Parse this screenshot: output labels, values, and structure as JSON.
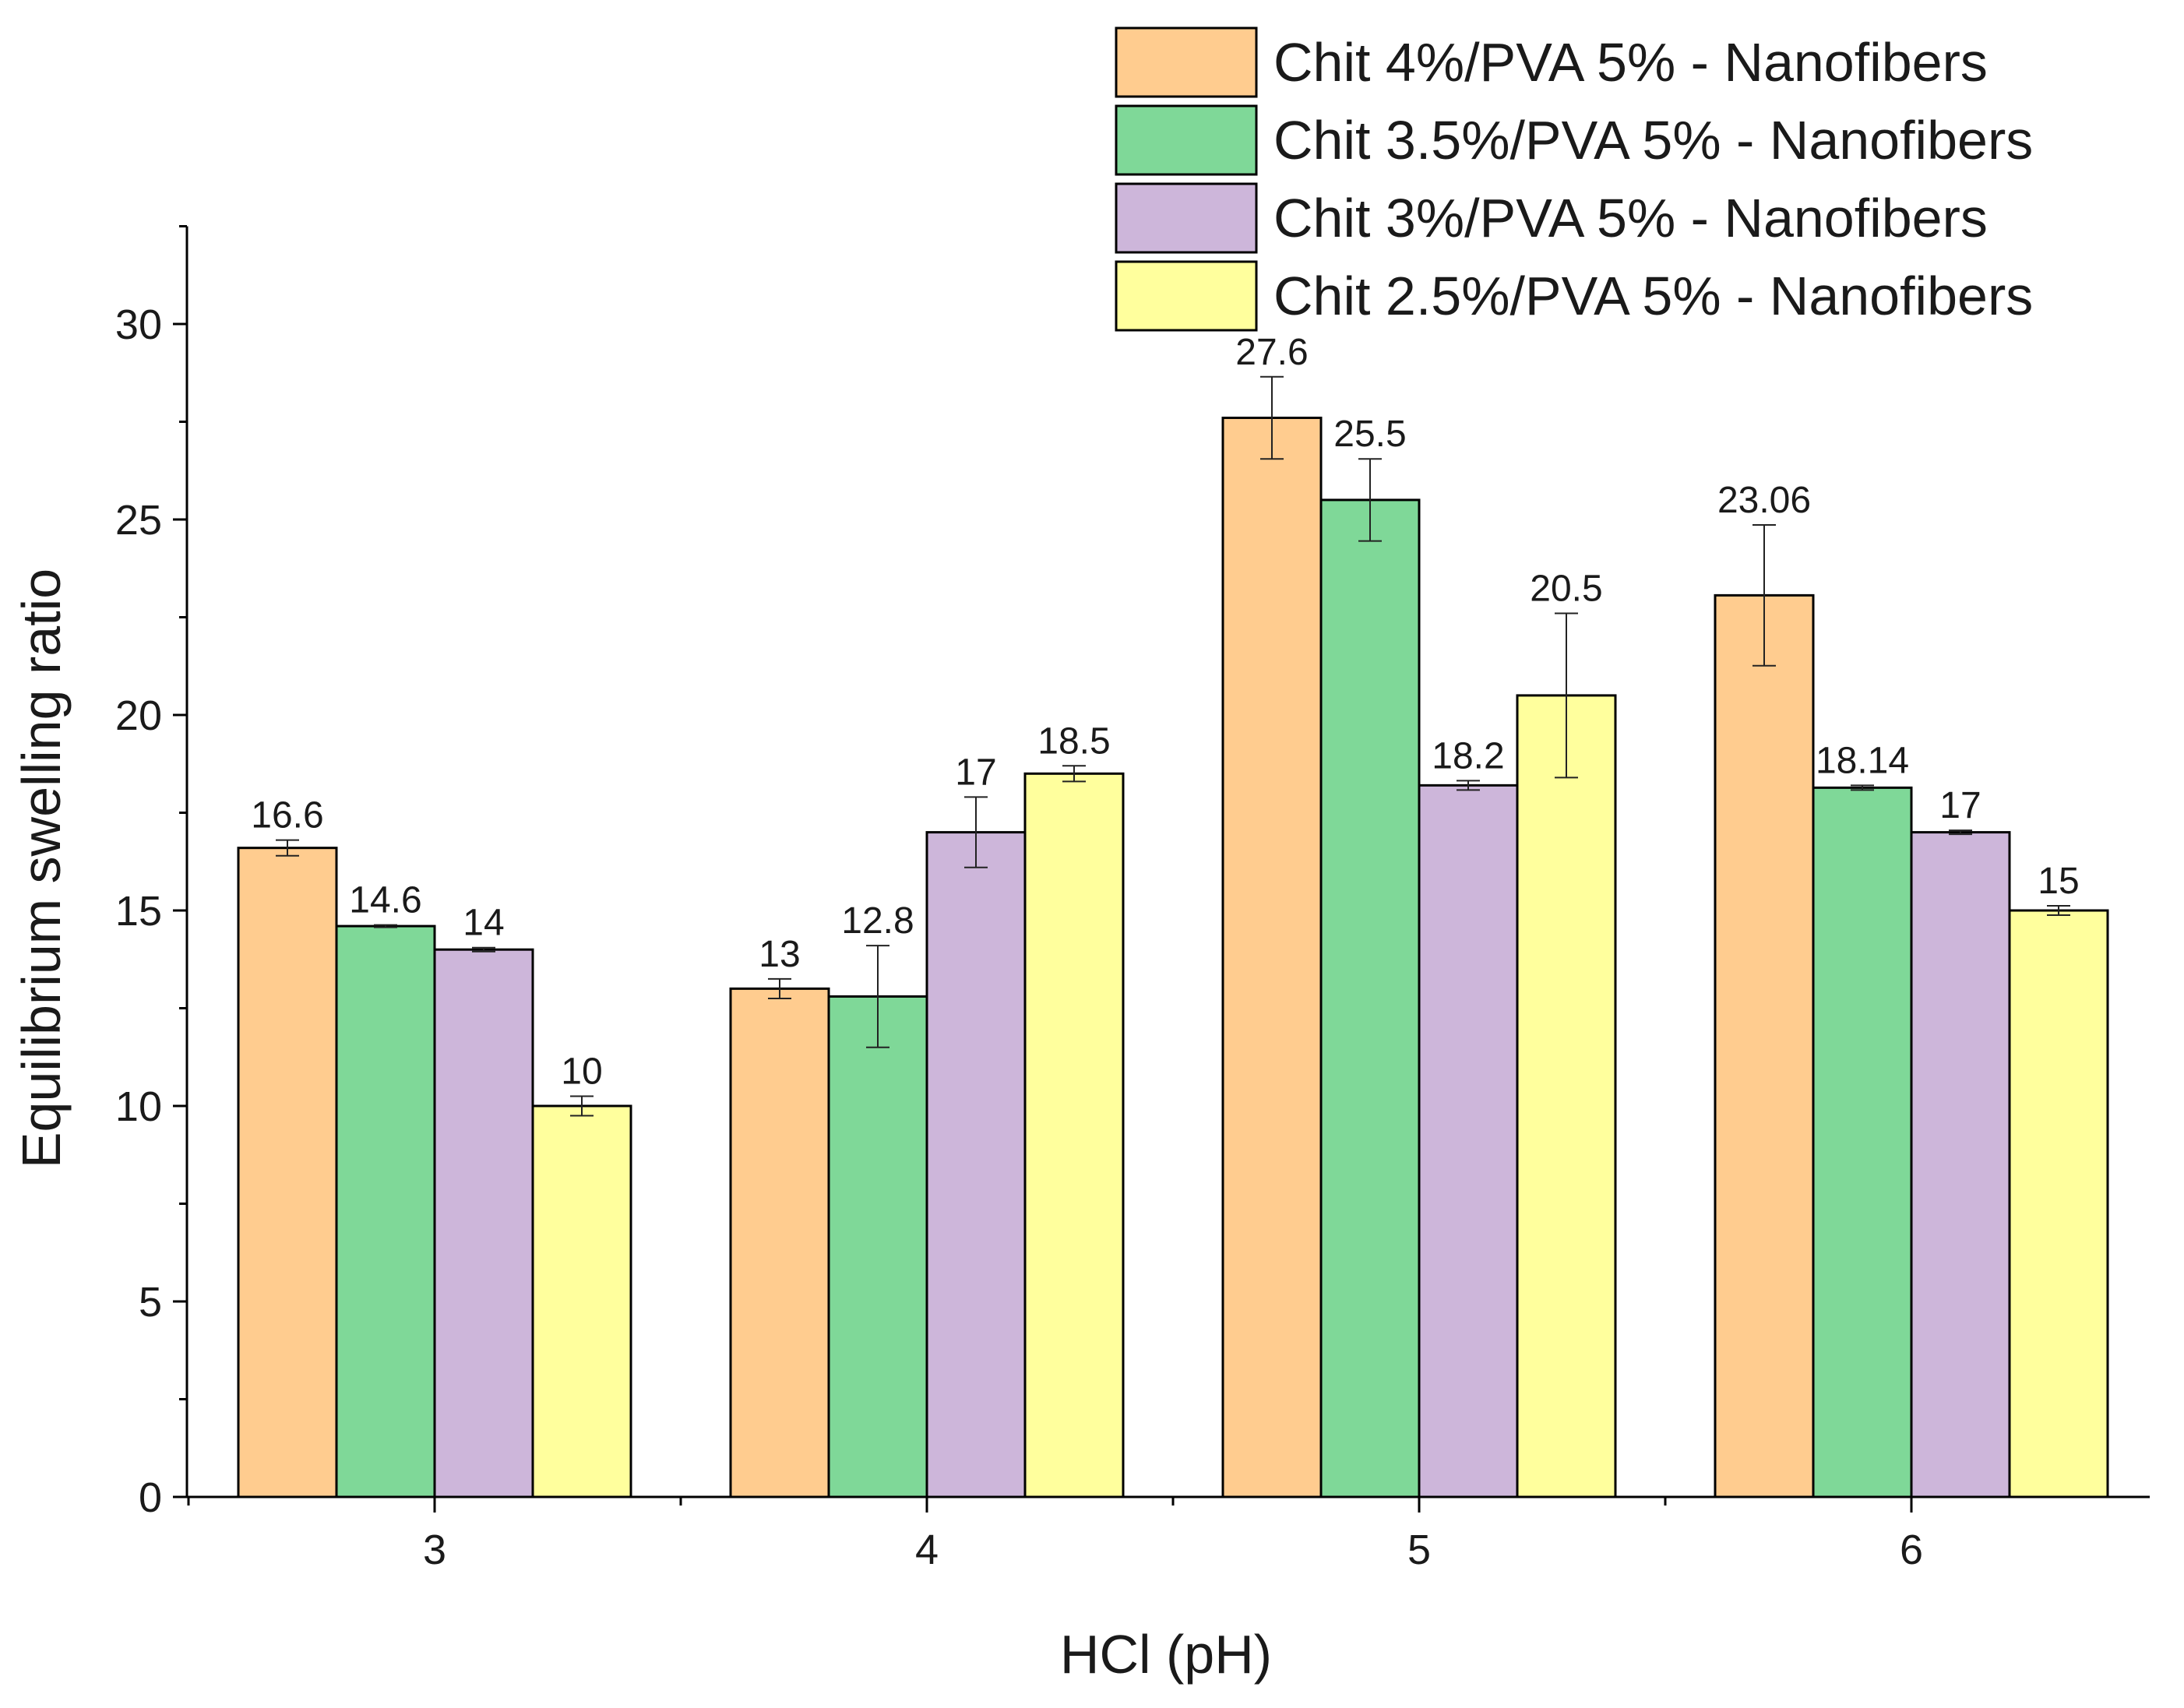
{
  "chart_data": {
    "type": "bar",
    "title": "",
    "xlabel": "HCl (pH)",
    "ylabel": "Equilibrium swelling ratio",
    "categories": [
      "3",
      "4",
      "5",
      "6"
    ],
    "ylim": [
      0,
      32.5
    ],
    "yticks": [
      0,
      5,
      10,
      15,
      20,
      25,
      30
    ],
    "ytick_labels": [
      "0",
      "5",
      "10",
      "15",
      "20",
      "25",
      "30"
    ],
    "grid": false,
    "legend_position": "top-right",
    "series": [
      {
        "name": "Chit 4%/PVA 5% - Nanofibers",
        "color": "#FFCC8F",
        "values": [
          16.6,
          13,
          27.6,
          23.06
        ],
        "labels": [
          "16.6",
          "13",
          "27.6",
          "23.06"
        ],
        "errors": [
          0.2,
          0.25,
          1.05,
          1.8
        ]
      },
      {
        "name": "Chit 3.5%/PVA 5% - Nanofibers",
        "color": "#7FD898",
        "values": [
          14.6,
          12.8,
          25.5,
          18.14
        ],
        "labels": [
          "14.6",
          "12.8",
          "25.5",
          "18.14"
        ],
        "errors": [
          0.03,
          1.3,
          1.05,
          0.06
        ]
      },
      {
        "name": "Chit 3%/PVA 5% - Nanofibers",
        "color": "#CDB6DA",
        "values": [
          14,
          17,
          18.2,
          17
        ],
        "labels": [
          "14",
          "17",
          "18.2",
          "17"
        ],
        "errors": [
          0.05,
          0.9,
          0.12,
          0.05
        ]
      },
      {
        "name": "Chit 2.5%/PVA 5% - Nanofibers",
        "color": "#FFFF9D",
        "values": [
          10,
          18.5,
          20.5,
          15
        ],
        "labels": [
          "10",
          "18.5",
          "20.5",
          "15"
        ],
        "errors": [
          0.25,
          0.2,
          2.1,
          0.12
        ]
      }
    ]
  }
}
